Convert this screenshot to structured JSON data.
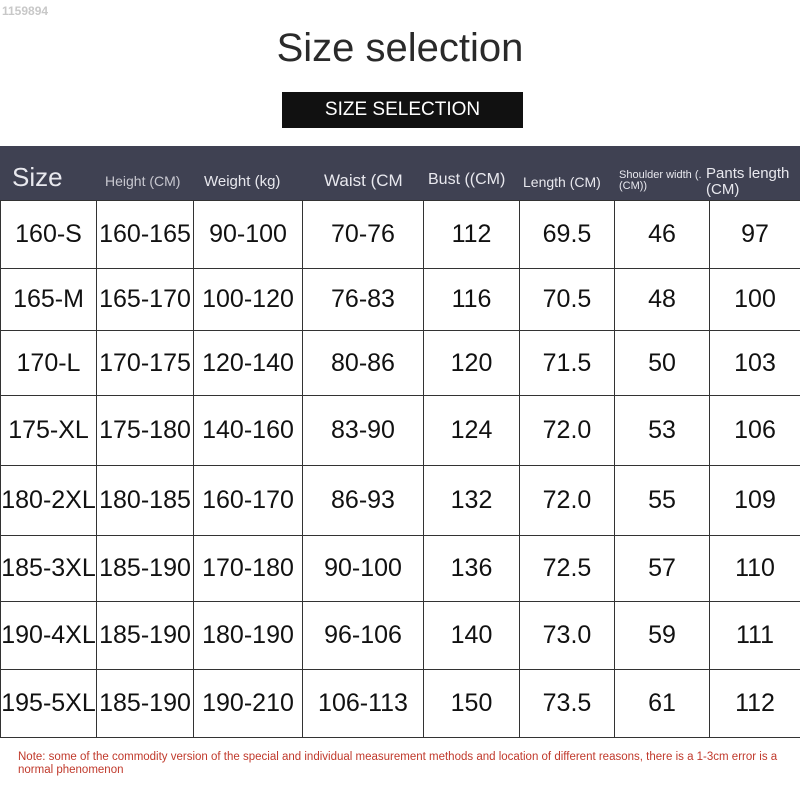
{
  "watermark": "1159894",
  "title": "Size selection",
  "subtitle": "SIZE SELECTION",
  "headers": [
    "Size",
    "Height (CM)",
    "Weight (kg)",
    "Waist (CM",
    "Bust ((CM)",
    "Length (CM)",
    "Shoulder width (.(CM))",
    "Pants length (CM)"
  ],
  "rows": [
    [
      "160-S",
      "160-165",
      "90-100",
      "70-76",
      "112",
      "69.5",
      "46",
      "97"
    ],
    [
      "165-M",
      "165-170",
      "100-120",
      "76-83",
      "116",
      "70.5",
      "48",
      "100"
    ],
    [
      "170-L",
      "170-175",
      "120-140",
      "80-86",
      "120",
      "71.5",
      "50",
      "103"
    ],
    [
      "175-XL",
      "175-180",
      "140-160",
      "83-90",
      "124",
      "72.0",
      "53",
      "106"
    ],
    [
      "180-2XL",
      "180-185",
      "160-170",
      "86-93",
      "132",
      "72.0",
      "55",
      "109"
    ],
    [
      "185-3XL",
      "185-190",
      "170-180",
      "90-100",
      "136",
      "72.5",
      "57",
      "110"
    ],
    [
      "190-4XL",
      "185-190",
      "180-190",
      "96-106",
      "140",
      "73.0",
      "59",
      "111"
    ],
    [
      "195-5XL",
      "185-190",
      "190-210",
      "106-113",
      "150",
      "73.5",
      "61",
      "112"
    ]
  ],
  "note": "Note: some of the commodity version of the special and individual measurement methods and location of different reasons, there is a 1-3cm error is a normal phenomenon"
}
